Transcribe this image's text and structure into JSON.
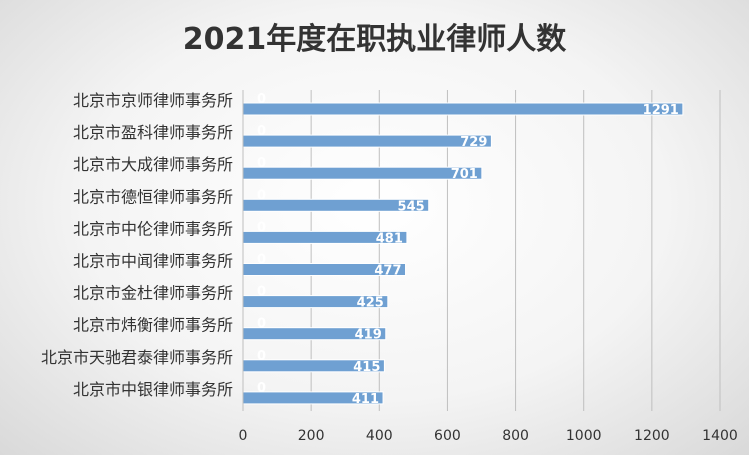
{
  "chart_data": {
    "type": "bar",
    "orientation": "horizontal",
    "title": "2021年度在职执业律师人数",
    "categories": [
      "北京市京师律师事务所",
      "北京市盈科律师事务所",
      "北京市大成律师事务所",
      "北京市德恒律师事务所",
      "北京市中伦律师事务所",
      "北京市中闻律师事务所",
      "北京市金杜律师事务所",
      "北京市炜衡律师事务所",
      "北京市天驰君泰律师事务所",
      "北京市中银律师事务所"
    ],
    "series": [
      {
        "values": [
          0,
          0,
          0,
          0,
          0,
          0,
          0,
          0,
          0,
          0
        ]
      },
      {
        "values": [
          1291,
          729,
          701,
          545,
          481,
          477,
          425,
          419,
          415,
          411
        ]
      }
    ],
    "xlim": [
      0,
      1400
    ],
    "xticks": [
      0,
      200,
      400,
      600,
      800,
      1000,
      1200,
      1400
    ],
    "xlabel": "",
    "ylabel": "",
    "grid": "vertical",
    "legend": "none",
    "bar_color": "#6fa0d2",
    "bar_border": "#ffffff"
  }
}
